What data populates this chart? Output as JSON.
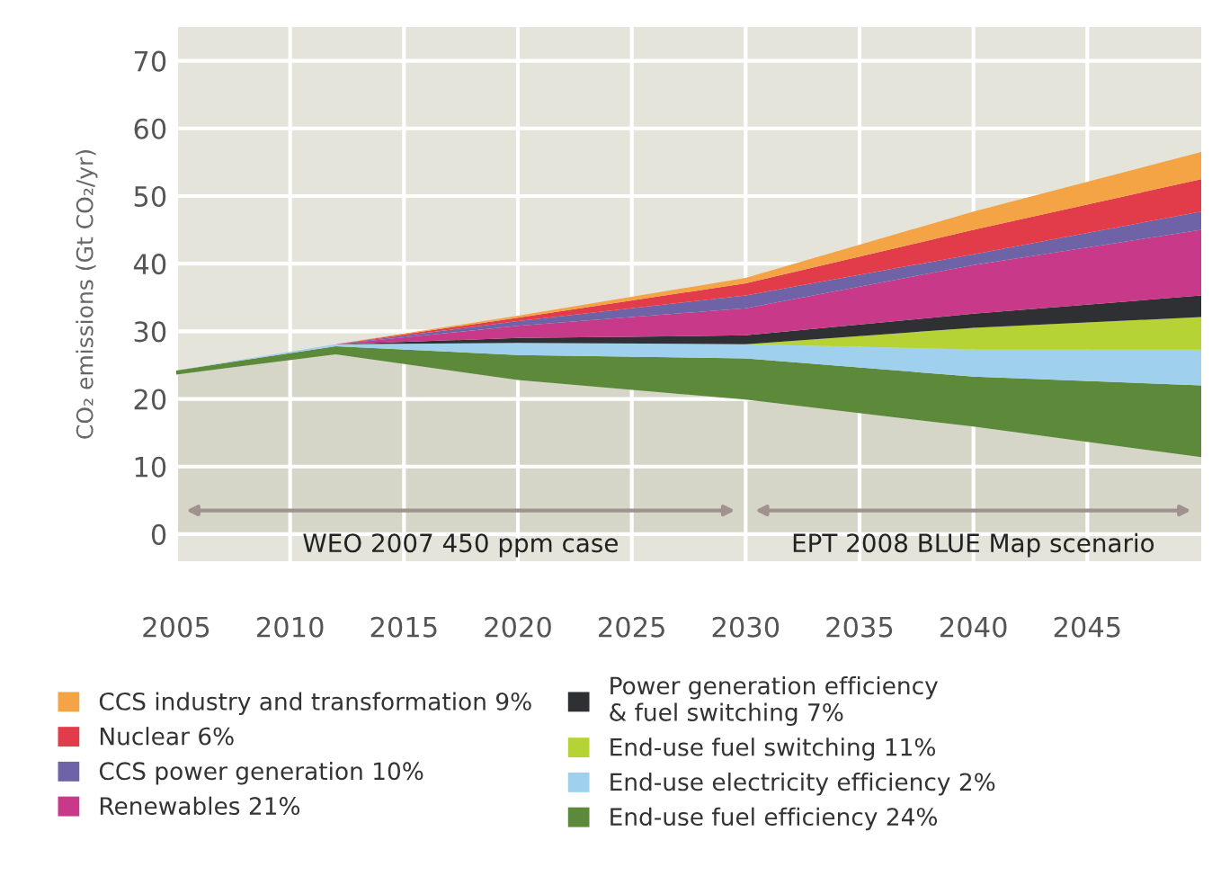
{
  "chart_data": {
    "type": "area",
    "stacked": true,
    "ylabel": "CO₂ emissions (Gt CO₂/yr)",
    "x": [
      2005,
      2012,
      2020,
      2030,
      2040,
      2050
    ],
    "xlim": [
      2005,
      2050
    ],
    "xticks": [
      2005,
      2010,
      2015,
      2020,
      2025,
      2030,
      2035,
      2040,
      2045
    ],
    "ylim": [
      -4,
      75
    ],
    "yticks": [
      0,
      10,
      20,
      30,
      40,
      50,
      60,
      70
    ],
    "grid": true,
    "legend": "bottom",
    "annotations": [
      "WEO 2007 450 ppm case",
      "EPT 2008 BLUE Map scenario"
    ],
    "series": [
      {
        "color": "#d6d6c8",
        "values": [
          23.6,
          26.6,
          22.8,
          19.9,
          15.9,
          11.4
        ]
      },
      {
        "name": "End-use fuel efficiency 24%",
        "color": "#5c8a3a",
        "values": [
          0.6,
          1.2,
          3.7,
          6.1,
          7.4,
          10.6
        ]
      },
      {
        "name": "End-use electricity efficiency 2%",
        "color": "#9fd0ee",
        "values": [
          0,
          0.3,
          1.8,
          2.1,
          4.0,
          5.3
        ]
      },
      {
        "name": "End-use fuel switching 11%",
        "color": "#b5d334",
        "values": [
          0,
          0,
          0,
          0,
          3.2,
          4.8
        ]
      },
      {
        "name": "Power generation efficiency\n& fuel switching 7%",
        "color": "#2e3033",
        "values": [
          0,
          0,
          0.7,
          1.3,
          2.1,
          3.2
        ]
      },
      {
        "name": "Renewables 21%",
        "color": "#c8398a",
        "values": [
          0,
          0,
          1.8,
          4.0,
          7.2,
          9.7
        ]
      },
      {
        "name": "CCS power generation 10%",
        "color": "#6f63a8",
        "values": [
          0,
          0,
          0.7,
          1.9,
          1.6,
          2.7
        ]
      },
      {
        "name": "Nuclear 6%",
        "color": "#e23c4a",
        "values": [
          0,
          0,
          0.5,
          1.8,
          3.6,
          4.8
        ]
      },
      {
        "name": "CCS industry and transformation 9%",
        "color": "#f4a345",
        "values": [
          0,
          0,
          0.3,
          0.8,
          2.7,
          4.0
        ]
      }
    ]
  }
}
